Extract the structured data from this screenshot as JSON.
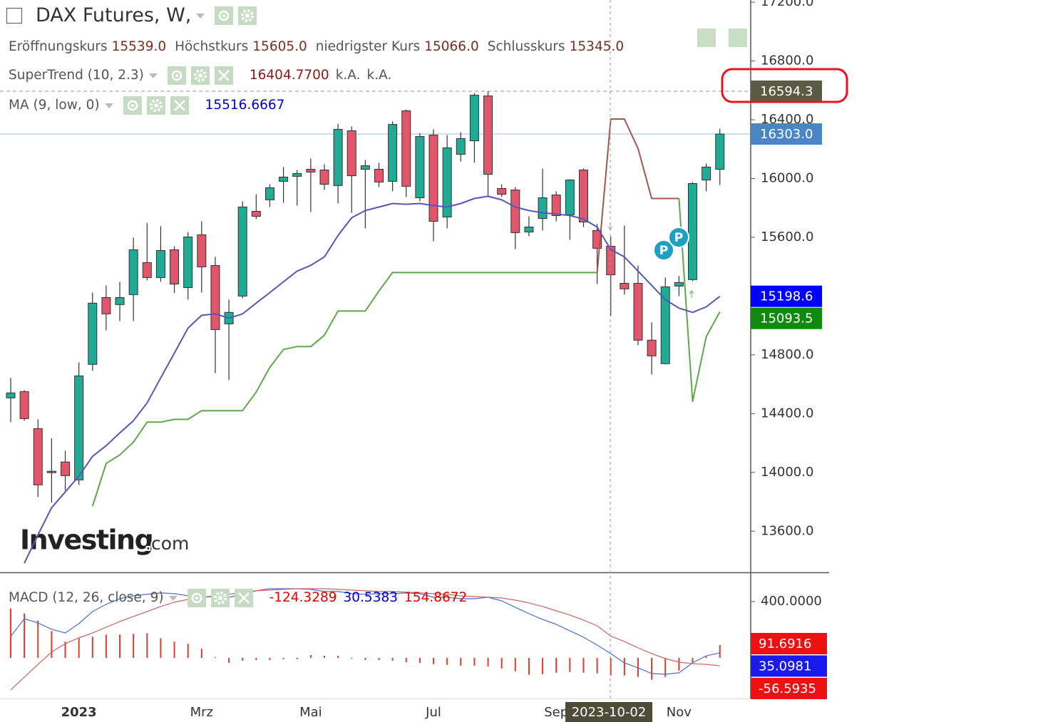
{
  "chart_data": [
    {
      "type": "candlestick",
      "title": "DAX Futures, W,",
      "ohlc_readout": [
        {
          "name": "Eröffnungskurs",
          "text": "15539.0"
        },
        {
          "name": "Höchstkurs",
          "text": "15605.0"
        },
        {
          "name": "niedrigster Kurs",
          "text": "15066.0"
        },
        {
          "name": "Schlusskurs",
          "text": "15345.0"
        }
      ],
      "readout_color": "#7a2e20",
      "categories": [
        null,
        null,
        null,
        null,
        null,
        "2023",
        null,
        null,
        null,
        null,
        null,
        null,
        null,
        null,
        "Mrz",
        null,
        null,
        null,
        null,
        null,
        null,
        null,
        "Mai",
        null,
        null,
        null,
        null,
        null,
        null,
        null,
        null,
        "Jul",
        null,
        null,
        null,
        null,
        null,
        null,
        null,
        null,
        "Sep",
        null,
        null,
        null,
        null,
        null,
        null,
        null,
        null,
        "Nov",
        null,
        null,
        null
      ],
      "open": [
        14507,
        14550,
        14298,
        14008,
        14071,
        13949,
        14735,
        15190,
        15142,
        15210,
        15428,
        15326,
        15515,
        15258,
        15617,
        15408,
        15011,
        15200,
        15777,
        15855,
        15981,
        16015,
        16063,
        16058,
        15952,
        16325,
        16063,
        16063,
        15981,
        16461,
        15869,
        16296,
        15738,
        16165,
        16257,
        16562,
        15932,
        15922,
        15636,
        15728,
        15888,
        15753,
        16058,
        15646,
        15539,
        15287,
        15287,
        14900,
        14740,
        15268,
        15312,
        15990,
        16063
      ],
      "high": [
        14643,
        14560,
        14361,
        14231,
        14148,
        14749,
        15224,
        15273,
        15297,
        15598,
        15699,
        15675,
        15539,
        15636,
        15709,
        15467,
        15176,
        15845,
        15893,
        15961,
        16078,
        16058,
        16136,
        16097,
        16373,
        16354,
        16126,
        16107,
        16388,
        16470,
        16310,
        16335,
        16296,
        16315,
        16580,
        16594.3,
        15961,
        15942,
        15743,
        16068,
        15913,
        15995,
        16068,
        15690,
        15605,
        15680,
        15408,
        15021,
        15326,
        15336,
        15976,
        16102,
        16339
      ],
      "low": [
        14342,
        14352,
        13833,
        13794,
        13877,
        13915,
        14691,
        14967,
        15030,
        15030,
        15307,
        15297,
        15220,
        15176,
        15224,
        14676,
        14628,
        15185,
        15724,
        15806,
        15835,
        15816,
        15772,
        15922,
        15830,
        15767,
        15661,
        15942,
        15913,
        15874,
        15845,
        15573,
        15661,
        16116,
        16107,
        15874,
        15874,
        15520,
        15607,
        15646,
        15709,
        15583,
        15670,
        15282,
        15066,
        15210,
        14866,
        14667,
        14735,
        15200,
        15302,
        15913,
        15956
      ],
      "close": [
        14541,
        14366,
        13915,
        13998,
        13978,
        14657,
        15152,
        15079,
        15190,
        15515,
        15326,
        15510,
        15282,
        15602,
        15399,
        14972,
        15089,
        15806,
        15743,
        15937,
        16010,
        16034,
        16044,
        15961,
        16335,
        16019,
        16087,
        15976,
        16368,
        15947,
        16286,
        15709,
        16209,
        16272,
        16567,
        16029,
        15893,
        15632,
        15670,
        15869,
        15748,
        15990,
        15704,
        15525,
        15345,
        15249,
        14900,
        14793,
        15263,
        15292,
        15966,
        16078,
        16303
      ],
      "up_color": "#22ab94",
      "down_color": "#e2566c",
      "outline_color": "#333333",
      "indicators": [
        {
          "name": "SuperTrend (10, 2.3)",
          "readout": [
            {
              "text": "16404.7700",
              "color": "#8b1a1a"
            },
            {
              "text": "k.A.",
              "color": "#555555"
            },
            {
              "text": "k.A.",
              "color": "#555555"
            }
          ],
          "lines": [
            {
              "color": "#5ea84a",
              "values": [
                null,
                null,
                null,
                null,
                null,
                null,
                13770,
                14061,
                14119,
                14206,
                14342,
                14342,
                14361,
                14361,
                14420,
                14420,
                14420,
                14420,
                14546,
                14715,
                14837,
                14856,
                14856,
                14934,
                15098,
                15098,
                15098,
                15234,
                15360,
                15360,
                15360,
                15360,
                15360,
                15360,
                15360,
                15360,
                15360,
                15360,
                15360,
                15360,
                15360,
                15360,
                15360,
                15360,
                null,
                null,
                null,
                null,
                null,
                15864,
                14483,
                14924,
                15093.5
              ]
            },
            {
              "color": "#a0584c",
              "values": [
                null,
                null,
                null,
                null,
                null,
                null,
                null,
                null,
                null,
                null,
                null,
                null,
                null,
                null,
                null,
                null,
                null,
                null,
                null,
                null,
                null,
                null,
                null,
                null,
                null,
                null,
                null,
                null,
                null,
                null,
                null,
                null,
                null,
                null,
                null,
                null,
                null,
                null,
                null,
                null,
                null,
                null,
                null,
                15360,
                16404.77,
                16404.77,
                16204,
                15864,
                15864,
                15864,
                null,
                null,
                null
              ]
            }
          ]
        },
        {
          "name": "MA (9, low, 0)",
          "readout": [
            {
              "text": "15516.6667",
              "color": "#0000cc"
            }
          ],
          "lines": [
            {
              "color": "#5656b8",
              "values": [
                null,
                13382,
                13576,
                13760,
                13867,
                13974,
                14109,
                14182,
                14269,
                14352,
                14473,
                14643,
                14812,
                14982,
                15069,
                15079,
                15050,
                15079,
                15152,
                15224,
                15297,
                15370,
                15409,
                15467,
                15612,
                15733,
                15782,
                15806,
                15830,
                15825,
                15830,
                15816,
                15806,
                15830,
                15864,
                15879,
                15855,
                15806,
                15782,
                15767,
                15758,
                15748,
                15724,
                15670,
                15516.6667,
                15467,
                15370,
                15273,
                15176,
                15118,
                15089,
                15127,
                15198.6
              ]
            }
          ]
        }
      ],
      "ylim": [
        13320,
        17215
      ],
      "yticks": [
        {
          "value": 13600,
          "label": "13600.0"
        },
        {
          "value": 14000,
          "label": "14000.0"
        },
        {
          "value": 14400,
          "label": "14400.0"
        },
        {
          "value": 14800,
          "label": "14800.0"
        },
        {
          "value": 15600,
          "label": "15600.0"
        },
        {
          "value": 16000,
          "label": "16000.0"
        },
        {
          "value": 16400,
          "label": "16400.0"
        },
        {
          "value": 16800,
          "label": "16800.0"
        },
        {
          "value": 17200,
          "label": "17200.0"
        }
      ],
      "price_tags": [
        {
          "value": 16594.3,
          "color": "#5b5b43",
          "line": "dashed",
          "line_color": "#aaaaaa"
        },
        {
          "value": 16303,
          "label": "16303.0",
          "color": "#4a86c5",
          "line": "solid",
          "line_color": "#a9cdf0"
        },
        {
          "value": 15198.6,
          "color": "#0000ff"
        },
        {
          "value": 15093.5,
          "color": "#0f8a0f"
        }
      ],
      "crosshair_label": "2023-10-02",
      "event_markers": [
        "P",
        "P"
      ],
      "logo": [
        "Investing",
        ".com"
      ]
    },
    {
      "type": "macd",
      "title": "MACD (12, 26, close, 9)",
      "readout": [
        {
          "text": "-124.3289",
          "color": "#e00000"
        },
        {
          "text": "30.5383",
          "color": "#0000cc"
        },
        {
          "text": "154.8672",
          "color": "#e00000"
        }
      ],
      "histogram": {
        "color": "#e03a2a",
        "values": [
          350,
          315,
          265,
          190,
          115,
          140,
          150,
          165,
          165,
          170,
          175,
          140,
          115,
          100,
          65,
          5,
          -35,
          -20,
          -15,
          -15,
          -10,
          -10,
          20,
          15,
          15,
          -5,
          -15,
          -15,
          -20,
          -30,
          -35,
          -45,
          -50,
          -55,
          -55,
          -60,
          -75,
          -95,
          -120,
          -115,
          -105,
          -100,
          -105,
          -110,
          -124.3289,
          -125,
          -135,
          -155,
          -135,
          -90,
          -40,
          10,
          91.6916
        ]
      },
      "macd": {
        "color": "#4a6fd0",
        "values": [
          152,
          278,
          248,
          203,
          177,
          243,
          329,
          380,
          420,
          440,
          451,
          461,
          456,
          440,
          430,
          435,
          430,
          451,
          476,
          491,
          491,
          491,
          486,
          471,
          471,
          456,
          451,
          456,
          456,
          461,
          456,
          430,
          430,
          420,
          420,
          430,
          405,
          359,
          314,
          273,
          238,
          192,
          147,
          91,
          30.5383,
          -35,
          -71,
          -111,
          -116,
          -106,
          -35,
          15,
          35.0981
        ]
      },
      "signal": {
        "color": "#d06464",
        "values": [
          -228,
          -137,
          -46,
          41,
          101,
          142,
          177,
          218,
          258,
          294,
          329,
          365,
          395,
          415,
          430,
          440,
          451,
          466,
          476,
          481,
          486,
          491,
          491,
          491,
          486,
          481,
          476,
          471,
          471,
          466,
          461,
          456,
          451,
          440,
          435,
          430,
          425,
          410,
          390,
          365,
          334,
          304,
          268,
          228,
          154.8672,
          116,
          71,
          30,
          -5,
          -30,
          -41,
          -46,
          -56.5935
        ]
      },
      "ylim": [
        -288,
        597
      ],
      "yticks": [
        {
          "value": 400,
          "label": "400.0000"
        }
      ],
      "price_tags": [
        {
          "value": 91.6916,
          "color": "#ee1111"
        },
        {
          "value": 35.0981,
          "color": "#1a1aee"
        },
        {
          "value": -56.5935,
          "color": "#ee1111"
        }
      ]
    }
  ]
}
